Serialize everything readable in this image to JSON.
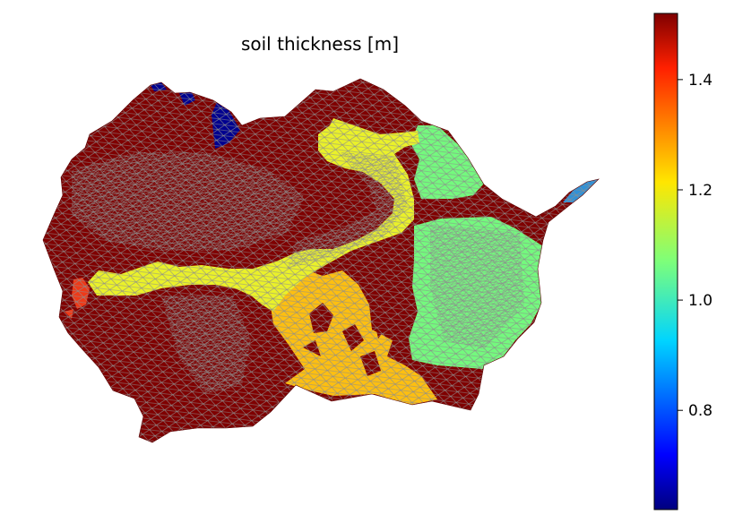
{
  "chart_data": {
    "type": "heatmap",
    "title": "soil thickness [m]",
    "xlabel": "",
    "ylabel": "",
    "grid": false,
    "axes_visible": false,
    "mesh": "triangulated watershed",
    "mesh_edge_color": "#808080",
    "colormap": "jet",
    "colorbar": {
      "placement": "right",
      "range": [
        0.62,
        1.52
      ],
      "ticks": [
        0.8,
        1.0,
        1.2,
        1.4
      ],
      "tick_labels": [
        "0.8",
        "1.0",
        "1.2",
        "1.4"
      ]
    },
    "regions": [
      {
        "value": 1.52,
        "color": "#7f0000"
      },
      {
        "value": 1.2,
        "color": "#eaf12a"
      },
      {
        "value": 1.05,
        "color": "#74f97e"
      },
      {
        "value": 1.3,
        "color": "#fdbf11"
      },
      {
        "value": 1.45,
        "color": "#ee3a19"
      },
      {
        "value": 0.85,
        "color": "#3291d6"
      },
      {
        "value": 0.62,
        "color": "#00008f"
      }
    ]
  }
}
